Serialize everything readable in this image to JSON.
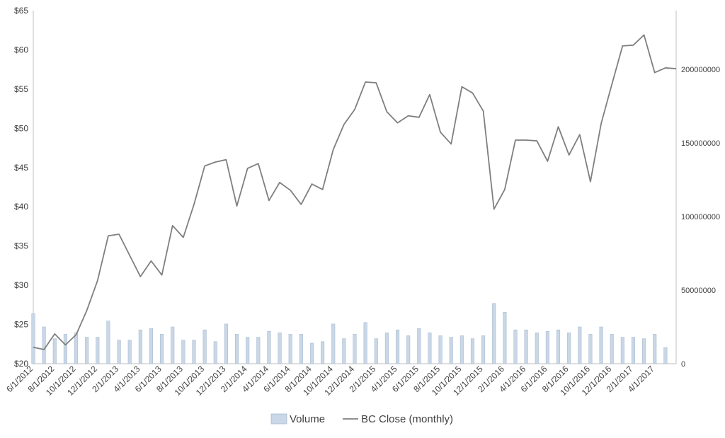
{
  "chart_data": {
    "type": "bar+line",
    "title": "",
    "colors": {
      "volume": "#c9d7e6",
      "volume_stroke": "#a9bdd2",
      "close": "#7f7f7f",
      "axis": "#bfbfbf",
      "text": "#404040"
    },
    "y_left": {
      "min": 20,
      "max": 65,
      "ticks": [
        "$20",
        "$25",
        "$30",
        "$35",
        "$40",
        "$45",
        "$50",
        "$55",
        "$60",
        "$65"
      ],
      "tick_values": [
        20,
        25,
        30,
        35,
        40,
        45,
        50,
        55,
        60,
        65
      ]
    },
    "y_right": {
      "min": 0,
      "max": 240000000,
      "ticks": [
        "0",
        "50000000",
        "100000000",
        "150000000",
        "200000000"
      ],
      "tick_values": [
        0,
        50000000,
        100000000,
        150000000,
        200000000
      ]
    },
    "x_tick_labels": [
      "6/1/2012",
      "8/1/2012",
      "10/1/2012",
      "12/1/2012",
      "2/1/2013",
      "4/1/2013",
      "6/1/2013",
      "8/1/2013",
      "10/1/2013",
      "12/1/2013",
      "2/1/2014",
      "4/1/2014",
      "6/1/2014",
      "8/1/2014",
      "10/1/2014",
      "12/1/2014",
      "2/1/2015",
      "4/1/2015",
      "6/1/2015",
      "8/1/2015",
      "10/1/2015",
      "12/1/2015",
      "2/1/2016",
      "4/1/2016",
      "6/1/2016",
      "8/1/2016",
      "10/1/2016",
      "12/1/2016",
      "2/1/2017",
      "4/1/2017"
    ],
    "x": [
      "6/1/2012",
      "7/1/2012",
      "8/1/2012",
      "9/1/2012",
      "10/1/2012",
      "11/1/2012",
      "12/1/2012",
      "1/1/2013",
      "2/1/2013",
      "3/1/2013",
      "4/1/2013",
      "5/1/2013",
      "6/1/2013",
      "7/1/2013",
      "8/1/2013",
      "9/1/2013",
      "10/1/2013",
      "11/1/2013",
      "12/1/2013",
      "1/1/2014",
      "2/1/2014",
      "3/1/2014",
      "4/1/2014",
      "5/1/2014",
      "6/1/2014",
      "7/1/2014",
      "8/1/2014",
      "9/1/2014",
      "10/1/2014",
      "11/1/2014",
      "12/1/2014",
      "1/1/2015",
      "2/1/2015",
      "3/1/2015",
      "4/1/2015",
      "5/1/2015",
      "6/1/2015",
      "7/1/2015",
      "8/1/2015",
      "9/1/2015",
      "10/1/2015",
      "11/1/2015",
      "12/1/2015",
      "1/1/2016",
      "2/1/2016",
      "3/1/2016",
      "4/1/2016",
      "5/1/2016",
      "6/1/2016",
      "7/1/2016",
      "8/1/2016",
      "9/1/2016",
      "10/1/2016",
      "11/1/2016",
      "12/1/2016",
      "1/1/2017",
      "2/1/2017",
      "3/1/2017",
      "4/1/2017",
      "5/1/2017",
      "6/1/2017"
    ],
    "series": [
      {
        "name": "Volume",
        "type": "bar",
        "axis": "right",
        "values": [
          34000000,
          25000000,
          17000000,
          20000000,
          21000000,
          18000000,
          18000000,
          29000000,
          16000000,
          16000000,
          23000000,
          24000000,
          20000000,
          25000000,
          16000000,
          16000000,
          23000000,
          15000000,
          27000000,
          20000000,
          18000000,
          18000000,
          22000000,
          21000000,
          20000000,
          20000000,
          14000000,
          15000000,
          27000000,
          17000000,
          20000000,
          28000000,
          17000000,
          21000000,
          23000000,
          19000000,
          24000000,
          21000000,
          19000000,
          18000000,
          19000000,
          17000000,
          19000000,
          41000000,
          35000000,
          23000000,
          23000000,
          21000000,
          22000000,
          23000000,
          21000000,
          25000000,
          20000000,
          25000000,
          20000000,
          18000000,
          18000000,
          17000000,
          20000000,
          11000000,
          0
        ]
      },
      {
        "name": "BC Close (monthly)",
        "type": "line",
        "axis": "left",
        "values": [
          22.1,
          21.8,
          23.8,
          22.4,
          23.7,
          26.8,
          30.6,
          36.3,
          36.5,
          33.8,
          31.1,
          33.1,
          31.3,
          37.6,
          36.1,
          40.3,
          45.2,
          45.7,
          46.0,
          40.1,
          44.9,
          45.5,
          40.8,
          43.1,
          42.1,
          40.3,
          42.9,
          42.2,
          47.3,
          50.5,
          52.4,
          55.9,
          55.8,
          52.1,
          50.7,
          51.6,
          51.4,
          54.3,
          49.5,
          48.0,
          55.3,
          54.5,
          52.2,
          39.7,
          42.2,
          48.5,
          48.5,
          48.4,
          45.8,
          50.2,
          46.6,
          49.2,
          43.2,
          50.6,
          55.6,
          60.5,
          60.6,
          61.9,
          57.1,
          57.7,
          57.6
        ]
      }
    ],
    "legend": {
      "position": "bottom",
      "items": [
        "Volume",
        "BC Close (monthly)"
      ]
    },
    "grid": false
  }
}
